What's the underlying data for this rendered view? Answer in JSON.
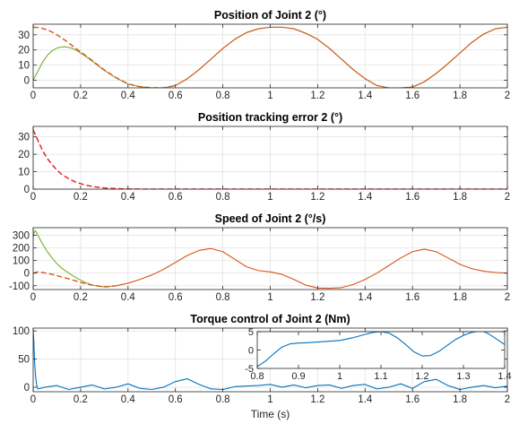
{
  "chart_data": [
    {
      "type": "line",
      "title": "Position of Joint 2 (°)",
      "xlabel": "",
      "ylabel": "",
      "xlim": [
        0,
        2
      ],
      "ylim": [
        -5,
        37
      ],
      "xticks": [
        0,
        0.2,
        0.4,
        0.6,
        0.8,
        1,
        1.2,
        1.4,
        1.6,
        1.8,
        2
      ],
      "xtick_labels": [
        "0",
        "0.2",
        "0.4",
        "0.6",
        "0.8",
        "1",
        "1.2",
        "1.4",
        "1.6",
        "1.8",
        "2"
      ],
      "yticks": [
        0,
        10,
        20,
        30
      ],
      "ytick_labels": [
        "0",
        "10",
        "20",
        "30"
      ],
      "grid": true,
      "series": [
        {
          "color": "#77AC30",
          "style": "solid",
          "x": [
            0,
            0.02,
            0.04,
            0.06,
            0.08,
            0.1,
            0.12,
            0.14,
            0.16,
            0.18,
            0.2,
            0.22,
            0.25,
            0.3,
            0.35,
            0.4,
            0.45,
            0.5,
            0.55,
            0.6,
            0.65,
            0.7,
            0.75,
            0.8,
            0.85,
            0.9,
            0.95,
            1,
            1.05,
            1.1,
            1.15,
            1.2,
            1.25,
            1.3,
            1.35,
            1.4,
            1.45,
            1.5,
            1.55,
            1.6,
            1.65,
            1.7,
            1.75,
            1.8,
            1.85,
            1.9,
            1.95,
            2
          ],
          "y": [
            0,
            6,
            12,
            16.5,
            19.5,
            21.3,
            22,
            22,
            21.3,
            20,
            18,
            16,
            12.5,
            6.5,
            1.5,
            -2.5,
            -4.2,
            -5,
            -5,
            -3.5,
            1,
            7,
            14,
            21,
            27,
            31.5,
            34,
            35,
            35,
            34,
            31,
            27,
            21,
            14,
            7,
            1,
            -3.5,
            -5,
            -5,
            -4.5,
            -1,
            4.5,
            11,
            18,
            25,
            30.5,
            34,
            35
          ]
        },
        {
          "color": "#D95319",
          "style": "dashed",
          "x": [
            0,
            0.02,
            0.04,
            0.06,
            0.08,
            0.1,
            0.12,
            0.14,
            0.16,
            0.18,
            0.2,
            0.22,
            0.25,
            0.3,
            0.35,
            0.4,
            0.45,
            0.5,
            0.55,
            0.6
          ],
          "y": [
            35,
            34.8,
            34.2,
            33.2,
            31.8,
            30,
            28,
            25.8,
            23.4,
            21,
            18.7,
            16.4,
            12.9,
            6.8,
            1.7,
            -2.4,
            -4.2,
            -5,
            -5,
            -3.5
          ]
        },
        {
          "color": "#D95319",
          "style": "solid",
          "x": [
            0.6,
            0.65,
            0.7,
            0.75,
            0.8,
            0.85,
            0.9,
            0.95,
            1,
            1.05,
            1.1,
            1.15,
            1.2,
            1.25,
            1.3,
            1.35,
            1.4,
            1.45,
            1.5,
            1.55,
            1.6,
            1.65,
            1.7,
            1.75,
            1.8,
            1.85,
            1.9,
            1.95,
            2
          ],
          "y": [
            -3.5,
            1,
            7,
            14,
            21,
            27,
            31.5,
            34,
            35,
            35,
            34,
            31,
            27,
            21,
            14,
            7,
            1,
            -3.5,
            -5,
            -5,
            -4.5,
            -1,
            4.5,
            11,
            18,
            25,
            30.5,
            34,
            35
          ]
        }
      ]
    },
    {
      "type": "line",
      "title": "Position tracking error 2 (°)",
      "xlabel": "",
      "ylabel": "",
      "xlim": [
        0,
        2
      ],
      "ylim": [
        0,
        36
      ],
      "xticks": [
        0,
        0.2,
        0.4,
        0.6,
        0.8,
        1,
        1.2,
        1.4,
        1.6,
        1.8,
        2
      ],
      "xtick_labels": [
        "0",
        "0.2",
        "0.4",
        "0.6",
        "0.8",
        "1",
        "1.2",
        "1.4",
        "1.6",
        "1.8",
        "2"
      ],
      "yticks": [
        0,
        10,
        20,
        30
      ],
      "ytick_labels": [
        "0",
        "10",
        "20",
        "30"
      ],
      "grid": true,
      "series": [
        {
          "color": "#E8151B",
          "style": "dashed",
          "x": [
            0,
            0.02,
            0.04,
            0.06,
            0.08,
            0.1,
            0.12,
            0.15,
            0.18,
            0.22,
            0.26,
            0.3,
            0.35,
            0.4,
            0.5,
            0.6,
            0.8,
            1,
            1.2,
            1.4,
            1.6,
            1.8,
            2
          ],
          "y": [
            34,
            28,
            22,
            17.5,
            14,
            11,
            8.5,
            6,
            4,
            2.3,
            1.3,
            0.7,
            0.3,
            0.1,
            0,
            0,
            0,
            0,
            0,
            0,
            0,
            0,
            0
          ]
        }
      ]
    },
    {
      "type": "line",
      "title": "Speed of Joint 2 (°/s)",
      "xlabel": "",
      "ylabel": "",
      "xlim": [
        0,
        2
      ],
      "ylim": [
        -130,
        360
      ],
      "xticks": [
        0,
        0.2,
        0.4,
        0.6,
        0.8,
        1,
        1.2,
        1.4,
        1.6,
        1.8,
        2
      ],
      "xtick_labels": [
        "0",
        "0.2",
        "0.4",
        "0.6",
        "0.8",
        "1",
        "1.2",
        "1.4",
        "1.6",
        "1.8",
        "2"
      ],
      "yticks": [
        -100,
        0,
        100,
        200,
        300
      ],
      "ytick_labels": [
        "-100",
        "0",
        "100",
        "200",
        "300"
      ],
      "grid": true,
      "series": [
        {
          "color": "#77AC30",
          "style": "solid",
          "x": [
            0,
            0.005,
            0.01,
            0.02,
            0.04,
            0.06,
            0.08,
            0.1,
            0.12,
            0.15,
            0.18,
            0.2,
            0.22,
            0.25,
            0.28,
            0.3,
            0.32,
            0.35
          ],
          "y": [
            280,
            330,
            335,
            300,
            230,
            170,
            120,
            75,
            40,
            0,
            -35,
            -55,
            -75,
            -95,
            -105,
            -108,
            -106,
            -100
          ]
        },
        {
          "color": "#D95319",
          "style": "dashed",
          "x": [
            0,
            0.02,
            0.04,
            0.06,
            0.08,
            0.1,
            0.12,
            0.15,
            0.18,
            0.2,
            0.22,
            0.25,
            0.28,
            0.3,
            0.32,
            0.35
          ],
          "y": [
            0,
            10,
            5,
            -2,
            -10,
            -20,
            -30,
            -45,
            -62,
            -73,
            -83,
            -95,
            -104,
            -108,
            -107,
            -100
          ]
        },
        {
          "color": "#D95319",
          "style": "solid",
          "x": [
            0.35,
            0.4,
            0.45,
            0.5,
            0.55,
            0.6,
            0.65,
            0.7,
            0.75,
            0.8,
            0.85,
            0.9,
            0.95,
            1,
            1.05,
            1.1,
            1.15,
            1.2,
            1.25,
            1.3,
            1.35,
            1.4,
            1.45,
            1.5,
            1.55,
            1.6,
            1.65,
            1.7,
            1.75,
            1.8,
            1.85,
            1.9,
            1.95,
            2
          ],
          "y": [
            -100,
            -80,
            -50,
            -15,
            30,
            85,
            140,
            180,
            195,
            170,
            110,
            50,
            20,
            10,
            -10,
            -50,
            -95,
            -118,
            -120,
            -115,
            -90,
            -50,
            0,
            60,
            120,
            170,
            190,
            170,
            120,
            70,
            35,
            15,
            5,
            0
          ]
        }
      ]
    },
    {
      "type": "line",
      "title": "Torque control of Joint 2 (Nm)",
      "xlabel": "Time (s)",
      "ylabel": "",
      "xlim": [
        0,
        2
      ],
      "ylim": [
        -8,
        105
      ],
      "xticks": [
        0,
        0.2,
        0.4,
        0.6,
        0.8,
        1,
        1.2,
        1.4,
        1.6,
        1.8,
        2
      ],
      "xtick_labels": [
        "0",
        "0.2",
        "0.4",
        "0.6",
        "0.8",
        "1",
        "1.2",
        "1.4",
        "1.6",
        "1.8",
        "2"
      ],
      "yticks": [
        0,
        50,
        100
      ],
      "ytick_labels": [
        "0",
        "50",
        "100"
      ],
      "grid": true,
      "series": [
        {
          "color": "#0072BD",
          "style": "solid",
          "x": [
            0,
            0.003,
            0.006,
            0.01,
            0.015,
            0.02,
            0.05,
            0.1,
            0.15,
            0.2,
            0.25,
            0.3,
            0.35,
            0.4,
            0.45,
            0.5,
            0.55,
            0.6,
            0.65,
            0.7,
            0.75,
            0.8,
            0.85,
            0.9,
            0.95,
            1,
            1.05,
            1.1,
            1.15,
            1.2,
            1.25,
            1.3,
            1.35,
            1.4,
            1.45,
            1.5,
            1.55,
            1.6,
            1.65,
            1.7,
            1.75,
            1.8,
            1.85,
            1.9,
            1.95,
            2
          ],
          "y": [
            102,
            80,
            45,
            20,
            3,
            -3,
            0,
            3,
            -4,
            0,
            4,
            -3,
            0,
            6,
            -2,
            -4,
            0,
            10,
            15,
            5,
            -3,
            -4,
            1,
            2,
            3,
            5,
            0,
            4,
            -1,
            3,
            4,
            -2,
            3,
            5,
            -3,
            0,
            6,
            -2,
            10,
            14,
            3,
            -4,
            0,
            3,
            -1,
            2
          ]
        }
      ],
      "inset": {
        "xlim": [
          0.8,
          1.4
        ],
        "ylim": [
          -5,
          5
        ],
        "xticks": [
          0.8,
          0.9,
          1,
          1.1,
          1.2,
          1.3,
          1.4
        ],
        "xtick_labels": [
          "0.8",
          "0.9",
          "1",
          "1.1",
          "1.2",
          "1.3",
          "1.4"
        ],
        "yticks": [
          -5,
          0,
          5
        ],
        "ytick_labels": [
          "-5",
          "0",
          "5"
        ],
        "series": [
          {
            "color": "#0072BD",
            "style": "solid",
            "x": [
              0.8,
              0.82,
              0.84,
              0.86,
              0.88,
              0.9,
              0.92,
              0.95,
              1,
              1.03,
              1.06,
              1.08,
              1.1,
              1.12,
              1.14,
              1.16,
              1.18,
              1.2,
              1.22,
              1.24,
              1.26,
              1.28,
              1.3,
              1.32,
              1.34,
              1.35,
              1.36,
              1.38,
              1.4
            ],
            "y": [
              -4.5,
              -3,
              -1,
              0.8,
              1.7,
              1.9,
              2,
              2.2,
              2.6,
              3.3,
              4.2,
              4.8,
              5,
              4.6,
              3.3,
              1.5,
              -0.5,
              -1.6,
              -1.5,
              -0.4,
              1.2,
              2.8,
              4,
              4.8,
              5.2,
              5,
              4.5,
              3,
              1.5
            ]
          }
        ]
      }
    }
  ]
}
